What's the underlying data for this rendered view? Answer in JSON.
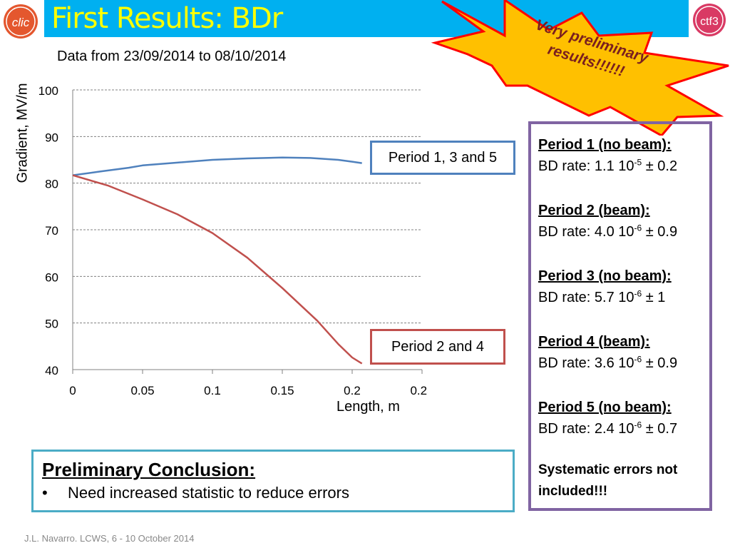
{
  "header": {
    "title": "First Results: BDr"
  },
  "logos": {
    "left": "clic",
    "right": "ctf3"
  },
  "starburst": {
    "text": "Very preliminary results!!!!!!"
  },
  "chart_subtitle": "Data from 23/09/2014 to 08/10/2014",
  "chart_data": {
    "type": "line",
    "xlabel": "Length, m",
    "ylabel": "Gradient, MV/m",
    "xlim": [
      0,
      0.25
    ],
    "ylim": [
      40,
      100
    ],
    "x_ticks": [
      "0",
      "0.05",
      "0.1",
      "0.15",
      "0.2",
      "0.25"
    ],
    "y_ticks": [
      "40",
      "50",
      "60",
      "70",
      "80",
      "90",
      "100"
    ],
    "grid": "horizontal dashed",
    "series": [
      {
        "name": "Period 1, 3 and 5",
        "color": "#4f81bd",
        "x": [
          0,
          0.02,
          0.04,
          0.05,
          0.075,
          0.1,
          0.125,
          0.15,
          0.17,
          0.19,
          0.2,
          0.207
        ],
        "y": [
          81.7,
          82.5,
          83.3,
          83.8,
          84.4,
          85.0,
          85.3,
          85.5,
          85.4,
          85.0,
          84.6,
          84.3
        ]
      },
      {
        "name": "Period 2 and 4",
        "color": "#c0504d",
        "x": [
          0,
          0.025,
          0.05,
          0.075,
          0.1,
          0.125,
          0.15,
          0.175,
          0.19,
          0.2,
          0.207
        ],
        "y": [
          81.7,
          79.5,
          76.5,
          73.3,
          69.3,
          64.0,
          57.5,
          50.5,
          45.5,
          42.6,
          41.3
        ]
      }
    ]
  },
  "callouts": {
    "series1": "Period 1, 3 and 5",
    "series2": "Period 2 and 4"
  },
  "periods": [
    {
      "head": "Period 1 (no beam):",
      "prefix": "BD rate: 1.1 10",
      "exp": "-5",
      "suffix": " ± 0.2"
    },
    {
      "head": "Period 2 (beam):",
      "prefix": "BD rate: 4.0 10",
      "exp": "-6",
      "suffix": " ± 0.9"
    },
    {
      "head": "Period 3 (no beam):",
      "prefix": "BD rate: 5.7 10",
      "exp": "-6",
      "suffix": " ± 1"
    },
    {
      "head": "Period 4 (beam):",
      "prefix": "BD rate: 3.6 10",
      "exp": "-6",
      "suffix": " ± 0.9"
    },
    {
      "head": "Period 5 (no beam):",
      "prefix": "BD rate: 2.4 10",
      "exp": "-6",
      "suffix": " ± 0.7"
    }
  ],
  "systematic_note": "Systematic errors not included!!!",
  "conclusion": {
    "title": "Preliminary Conclusion:",
    "bullet": "•",
    "item": "Need increased statistic to reduce errors"
  },
  "footer": "J.L. Navarro. LCWS, 6 - 10 October 2014"
}
